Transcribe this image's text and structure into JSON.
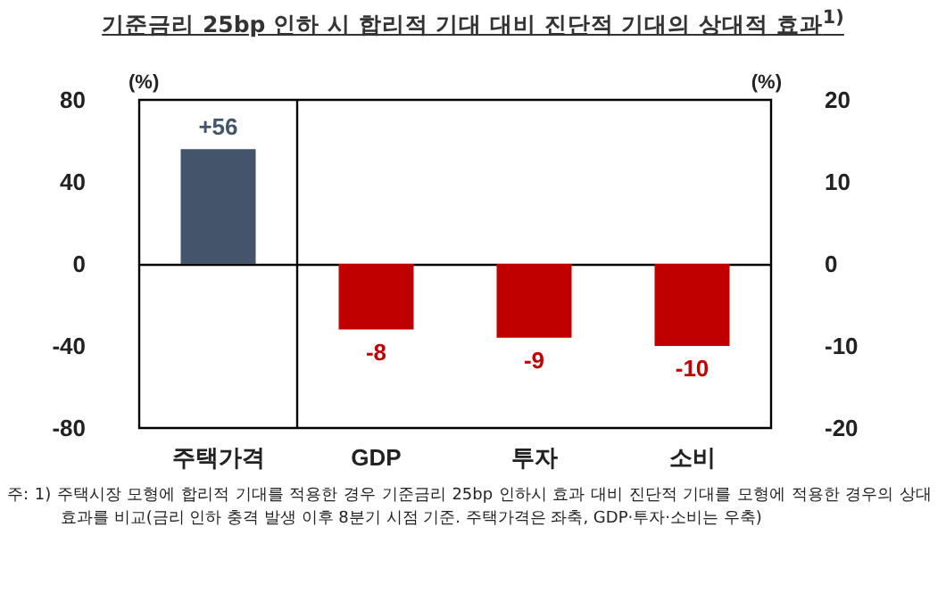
{
  "chart_data": {
    "type": "bar",
    "title": "기준금리 25bp 인하 시 합리적 기대 대비 진단적 기대의 상대적 효과$^{1)}$",
    "categories": [
      "주택가격",
      "GDP",
      "투자",
      "소비"
    ],
    "series": [
      {
        "color": "#44546a",
        "values": [
          56,
          null,
          null,
          null
        ],
        "value_labels": [
          "+56",
          null,
          null,
          null
        ]
      },
      {
        "color": "#c00000",
        "axis": "y2",
        "values": [
          null,
          -8,
          -9,
          -10
        ],
        "value_labels": [
          null,
          "-8",
          "-9",
          "-10"
        ]
      }
    ],
    "ylabel": "(%)",
    "y2label": "(%)",
    "ylim": [
      -80,
      80
    ],
    "yticks": [
      -80,
      -40,
      0,
      40,
      80
    ],
    "y2lim": [
      -20,
      20
    ],
    "y2ticks": [
      -20,
      -10,
      0,
      10,
      20
    ],
    "annotations": [
      "주: 1) 주택시장 모형에 합리적 기대를 적용한 경우 기준금리 25bp 인하시 효과 대비 진단적 기대를 모형에 적용한 경우의 상대 효과를 비교(금리 인하 충격 발생 이후 8분기 시점 기준. 주택가격은 좌축, GDP·투자·소비는 우축)"
    ]
  }
}
